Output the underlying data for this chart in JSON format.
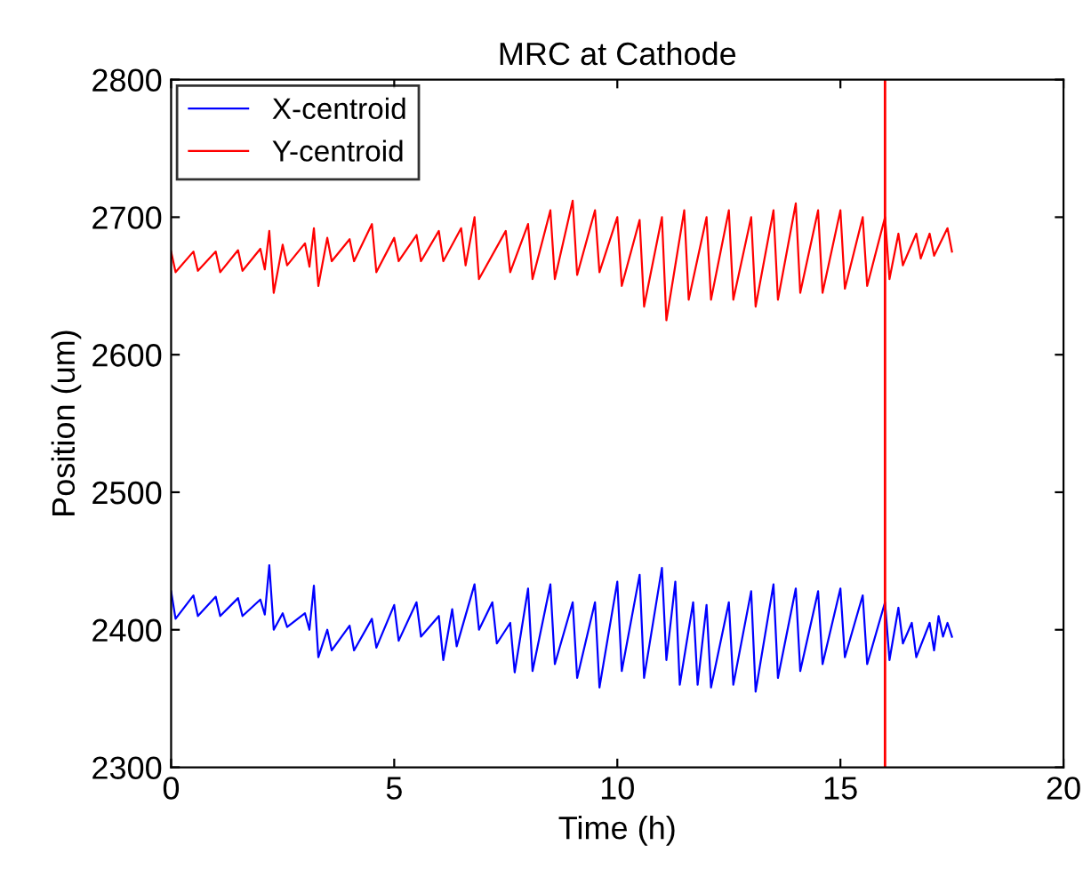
{
  "chart_data": {
    "type": "line",
    "title": "MRC at Cathode",
    "xlabel": "Time (h)",
    "ylabel": "Position (um)",
    "xlim": [
      0,
      20
    ],
    "xticks": [
      0,
      5,
      10,
      15,
      20
    ],
    "ylim": [
      2300,
      2800
    ],
    "yticks": [
      2300,
      2400,
      2500,
      2600,
      2700,
      2800
    ],
    "grid": false,
    "legend": "top left",
    "marker": "none",
    "line_style": "solid",
    "ref_lines": [
      {
        "axis": "x",
        "value": 16,
        "label": null,
        "color": "#ff0000",
        "line_style": "solid"
      }
    ],
    "series": [
      {
        "name": "X-centroid",
        "color": "#0000ff",
        "x": [
          0,
          0.1,
          0.5,
          0.6,
          1,
          1.1,
          1.5,
          1.6,
          2,
          2.1,
          2.2,
          2.3,
          2.5,
          2.6,
          3,
          3.1,
          3.2,
          3.3,
          3.5,
          3.6,
          4,
          4.1,
          4.5,
          4.6,
          5,
          5.1,
          5.5,
          5.6,
          6,
          6.1,
          6.3,
          6.4,
          6.8,
          6.9,
          7.2,
          7.3,
          7.6,
          7.7,
          8,
          8.1,
          8.5,
          8.6,
          9,
          9.1,
          9.5,
          9.6,
          10,
          10.1,
          10.5,
          10.6,
          11,
          11.1,
          11.3,
          11.4,
          11.7,
          11.8,
          12,
          12.1,
          12.5,
          12.6,
          13,
          13.1,
          13.5,
          13.6,
          14,
          14.1,
          14.5,
          14.6,
          15,
          15.1,
          15.5,
          15.6,
          16,
          16.1,
          16.3,
          16.4,
          16.6,
          16.7,
          17,
          17.1,
          17.2,
          17.3,
          17.4,
          17.5
        ],
        "values": [
          2428,
          2408,
          2425,
          2410,
          2424,
          2410,
          2423,
          2410,
          2422,
          2411,
          2447,
          2400,
          2412,
          2402,
          2412,
          2400,
          2432,
          2380,
          2400,
          2385,
          2403,
          2385,
          2408,
          2387,
          2418,
          2392,
          2420,
          2395,
          2410,
          2378,
          2415,
          2388,
          2433,
          2400,
          2420,
          2390,
          2405,
          2369,
          2430,
          2370,
          2433,
          2375,
          2420,
          2365,
          2420,
          2358,
          2435,
          2370,
          2440,
          2365,
          2445,
          2378,
          2435,
          2360,
          2420,
          2360,
          2418,
          2358,
          2420,
          2360,
          2428,
          2355,
          2433,
          2365,
          2430,
          2370,
          2428,
          2375,
          2430,
          2380,
          2425,
          2375,
          2420,
          2378,
          2416,
          2390,
          2405,
          2380,
          2405,
          2385,
          2410,
          2395,
          2405,
          2395
        ]
      },
      {
        "name": "Y-centroid",
        "color": "#ff0000",
        "x": [
          0,
          0.1,
          0.5,
          0.6,
          1,
          1.1,
          1.5,
          1.6,
          2,
          2.1,
          2.2,
          2.3,
          2.5,
          2.6,
          3,
          3.1,
          3.2,
          3.3,
          3.5,
          3.6,
          4,
          4.1,
          4.5,
          4.6,
          5,
          5.1,
          5.5,
          5.6,
          6,
          6.1,
          6.5,
          6.6,
          6.8,
          6.9,
          7.5,
          7.6,
          8,
          8.1,
          8.5,
          8.6,
          9,
          9.1,
          9.5,
          9.6,
          10,
          10.1,
          10.5,
          10.6,
          11,
          11.1,
          11.5,
          11.6,
          12,
          12.1,
          12.5,
          12.6,
          13,
          13.1,
          13.5,
          13.6,
          14,
          14.1,
          14.5,
          14.6,
          15,
          15.1,
          15.5,
          15.6,
          16,
          16.1,
          16.3,
          16.4,
          16.7,
          16.8,
          17,
          17.1,
          17.4,
          17.5
        ],
        "values": [
          2675,
          2660,
          2675,
          2661,
          2675,
          2660,
          2676,
          2661,
          2677,
          2662,
          2690,
          2645,
          2680,
          2665,
          2681,
          2664,
          2692,
          2650,
          2685,
          2668,
          2684,
          2668,
          2695,
          2660,
          2685,
          2668,
          2687,
          2668,
          2690,
          2668,
          2692,
          2665,
          2700,
          2655,
          2690,
          2660,
          2695,
          2655,
          2705,
          2655,
          2712,
          2658,
          2705,
          2660,
          2700,
          2650,
          2698,
          2635,
          2700,
          2625,
          2705,
          2640,
          2700,
          2640,
          2705,
          2640,
          2700,
          2635,
          2705,
          2640,
          2710,
          2645,
          2705,
          2645,
          2705,
          2648,
          2700,
          2650,
          2700,
          2655,
          2688,
          2665,
          2688,
          2670,
          2688,
          2672,
          2692,
          2675
        ]
      }
    ]
  }
}
